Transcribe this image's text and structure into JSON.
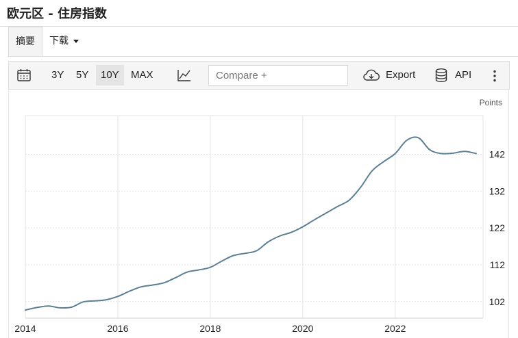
{
  "page": {
    "title": "欧元区 - 住房指数"
  },
  "tabs": [
    {
      "label": "摘要"
    },
    {
      "label": "下载"
    }
  ],
  "toolbar": {
    "ranges": [
      "3Y",
      "5Y",
      "10Y",
      "MAX"
    ],
    "selected_range": "10Y",
    "compare_placeholder": "Compare +",
    "export_label": "Export",
    "api_label": "API",
    "icons": [
      "calendar-icon",
      "line-chart-icon",
      "cloud-download-icon",
      "database-icon",
      "more-vertical-icon"
    ]
  },
  "colors": {
    "line": "#5b7f95",
    "grid": "#e3e3e3",
    "toolbar_bg": "#f5f5f5"
  },
  "chart_data": {
    "type": "line",
    "title": "",
    "xlabel": "",
    "ylabel": "Points",
    "xlim": [
      2014.0,
      2023.9
    ],
    "ylim": [
      97.5,
      152.5
    ],
    "x_ticks": [
      "2014",
      "2016",
      "2018",
      "2020",
      "2022"
    ],
    "y_ticks": [
      102,
      112,
      122,
      132,
      142
    ],
    "y_axis_position": "right",
    "grid": true,
    "series": [
      {
        "x": [
          2014.0,
          2014.25,
          2014.5,
          2014.75,
          2015.0,
          2015.25,
          2015.5,
          2015.75,
          2016.0,
          2016.25,
          2016.5,
          2016.75,
          2017.0,
          2017.25,
          2017.5,
          2017.75,
          2018.0,
          2018.25,
          2018.5,
          2018.75,
          2019.0,
          2019.25,
          2019.5,
          2019.75,
          2020.0,
          2020.25,
          2020.5,
          2020.75,
          2021.0,
          2021.25,
          2021.5,
          2021.75,
          2022.0,
          2022.25,
          2022.5,
          2022.75,
          2023.0,
          2023.25,
          2023.5,
          2023.75
        ],
        "y": [
          99.7,
          100.4,
          100.8,
          100.3,
          100.5,
          101.9,
          102.2,
          102.5,
          103.4,
          104.8,
          106.0,
          106.5,
          107.1,
          108.5,
          110.0,
          110.6,
          111.3,
          113.0,
          114.5,
          115.1,
          115.8,
          118.2,
          119.8,
          120.8,
          122.3,
          124.2,
          126.0,
          127.8,
          129.5,
          133.0,
          137.5,
          140.0,
          142.2,
          145.8,
          146.5,
          143.2,
          142.2,
          142.3,
          142.8,
          142.2
        ]
      }
    ]
  }
}
